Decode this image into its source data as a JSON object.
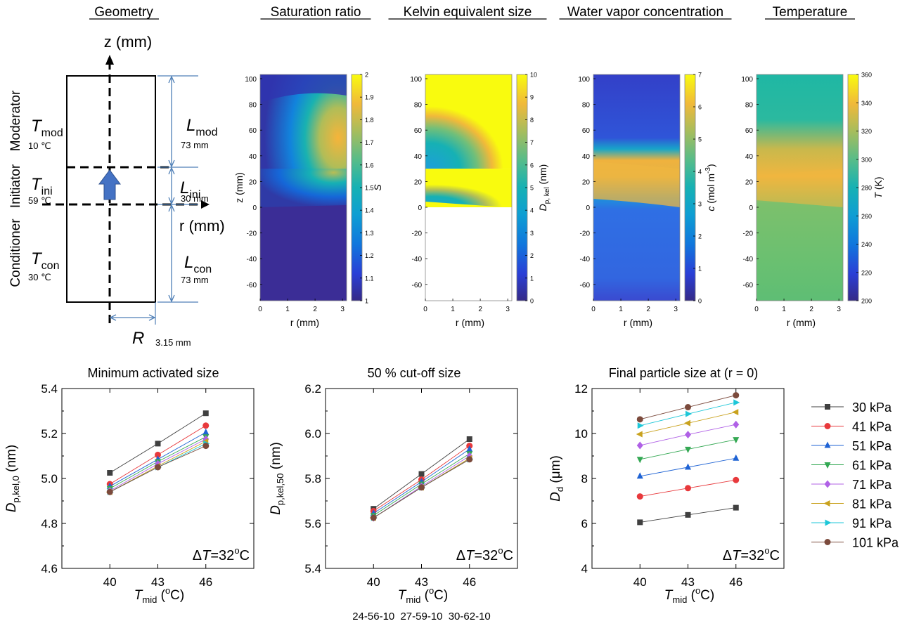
{
  "colors": {
    "line_blue": "#4f7fb6",
    "arrow_fill": "#4472c4",
    "series": [
      "#404040",
      "#e8393c",
      "#1f63d4",
      "#34a853",
      "#b061e6",
      "#c9a21e",
      "#1ec7d8",
      "#7b4a3c"
    ]
  },
  "geometry_panel": {
    "title": "Geometry",
    "z_axis_label": "z (mm)",
    "r_axis_label": "r (mm)",
    "section_labels": [
      "Moderator",
      "Initiator",
      "Conditioner"
    ],
    "temps": [
      {
        "sym": "T",
        "sub": "mod",
        "value": "10 ℃"
      },
      {
        "sym": "T",
        "sub": "ini",
        "value": "59 ℃"
      },
      {
        "sym": "T",
        "sub": "con",
        "value": "30 ℃"
      }
    ],
    "lengths": [
      {
        "sym": "L",
        "sub": "mod",
        "value": "73 mm"
      },
      {
        "sym": "L",
        "sub": "ini",
        "value": "30 mm"
      },
      {
        "sym": "L",
        "sub": "con",
        "value": "73 mm"
      }
    ],
    "radius": {
      "sym": "R",
      "value": "3.15 mm"
    }
  },
  "field_maps": [
    {
      "title": "Saturation ratio",
      "cbar_label": "S",
      "cbar_sub": "",
      "cbar_ticks": [
        "1",
        "1.1",
        "1.2",
        "1.3",
        "1.4",
        "1.5",
        "1.6",
        "1.7",
        "1.8",
        "1.9",
        "2"
      ],
      "colormap": "parula"
    },
    {
      "title": "Kelvin equivalent size",
      "cbar_label": "D",
      "cbar_sub": "p, kel",
      "cbar_unit": " (nm)",
      "cbar_ticks": [
        "0",
        "1",
        "2",
        "3",
        "4",
        "5",
        "6",
        "7",
        "8",
        "9",
        "10"
      ],
      "colormap": "parula"
    },
    {
      "title": "Water vapor concentration",
      "cbar_label": "c",
      "cbar_sub": "",
      "cbar_unit": " (mol m",
      "cbar_sup": "-3",
      "cbar_end": ")",
      "cbar_ticks": [
        "0",
        "1",
        "2",
        "3",
        "4",
        "5",
        "6",
        "7"
      ],
      "colormap": "parula"
    },
    {
      "title": "Temperature",
      "cbar_label": "T",
      "cbar_sub": "",
      "cbar_unit": " (K)",
      "cbar_ticks": [
        "200",
        "220",
        "240",
        "260",
        "280",
        "300",
        "320",
        "340",
        "360"
      ],
      "colormap": "parula"
    }
  ],
  "field_map_axes": {
    "xlabel": "r (mm)",
    "ylabel": "z (mm)",
    "x_ticks": [
      "0",
      "1",
      "2",
      "3"
    ],
    "y_ticks": [
      "100",
      "80",
      "60",
      "40",
      "20",
      "0",
      "-20",
      "-40",
      "-60"
    ]
  },
  "legend": {
    "entries": [
      "30 kPa",
      "41 kPa",
      "51 kPa",
      "61 kPa",
      "71 kPa",
      "81 kPa",
      "91 kPa",
      "101 kPa"
    ],
    "markers": [
      "square",
      "circle",
      "triangle-up",
      "triangle-down",
      "diamond",
      "triangle-left",
      "triangle-right",
      "hexagon"
    ]
  },
  "x_extra_labels": [
    "24-56-10",
    "27-59-10",
    "30-62-10"
  ],
  "chart_data": [
    {
      "type": "line",
      "title": "Minimum activated size",
      "ylabel_sym": "D",
      "ylabel_sub": "p,kel,0",
      "ylabel_unit": " (nm)",
      "xlabel_sym": "T",
      "xlabel_sub": "mid",
      "xlabel_unit": " (",
      "xlabel_sup": "o",
      "xlabel_end": "C)",
      "annotation": "ΔT=32°C",
      "x": [
        40,
        43,
        46
      ],
      "xlim": [
        37,
        49
      ],
      "ylim": [
        4.6,
        5.4
      ],
      "x_ticks": [
        "40",
        "43",
        "46"
      ],
      "y_ticks": [
        "4.6",
        "4.8",
        "5.0",
        "5.2",
        "5.4"
      ],
      "series": [
        {
          "name": "30 kPa",
          "values": [
            5.025,
            5.155,
            5.29
          ]
        },
        {
          "name": "41 kPa",
          "values": [
            4.975,
            5.105,
            5.235
          ]
        },
        {
          "name": "51 kPa",
          "values": [
            4.965,
            5.085,
            5.205
          ]
        },
        {
          "name": "61 kPa",
          "values": [
            4.955,
            5.075,
            5.185
          ]
        },
        {
          "name": "71 kPa",
          "values": [
            4.945,
            5.065,
            5.175
          ]
        },
        {
          "name": "81 kPa",
          "values": [
            4.94,
            5.055,
            5.165
          ]
        },
        {
          "name": "91 kPa",
          "values": [
            4.94,
            5.05,
            5.155
          ]
        },
        {
          "name": "101 kPa",
          "values": [
            4.94,
            5.05,
            5.145
          ]
        }
      ]
    },
    {
      "type": "line",
      "title": "50 % cut-off size",
      "ylabel_sym": "D",
      "ylabel_sub": "p,kel,50",
      "ylabel_unit": " (nm)",
      "xlabel_sym": "T",
      "xlabel_sub": "mid",
      "xlabel_unit": " (",
      "xlabel_sup": "o",
      "xlabel_end": "C)",
      "annotation": "ΔT=32°C",
      "x": [
        40,
        43,
        46
      ],
      "xlim": [
        37,
        49
      ],
      "ylim": [
        5.4,
        6.2
      ],
      "x_ticks": [
        "40",
        "43",
        "46"
      ],
      "y_ticks": [
        "5.4",
        "5.6",
        "5.8",
        "6.0",
        "6.2"
      ],
      "series": [
        {
          "name": "30 kPa",
          "values": [
            5.665,
            5.82,
            5.975
          ]
        },
        {
          "name": "41 kPa",
          "values": [
            5.655,
            5.795,
            5.945
          ]
        },
        {
          "name": "51 kPa",
          "values": [
            5.645,
            5.785,
            5.93
          ]
        },
        {
          "name": "61 kPa",
          "values": [
            5.635,
            5.775,
            5.91
          ]
        },
        {
          "name": "71 kPa",
          "values": [
            5.625,
            5.765,
            5.9
          ]
        },
        {
          "name": "81 kPa",
          "values": [
            5.625,
            5.76,
            5.89
          ]
        },
        {
          "name": "91 kPa",
          "values": [
            5.625,
            5.76,
            5.885
          ]
        },
        {
          "name": "101 kPa",
          "values": [
            5.625,
            5.76,
            5.885
          ]
        }
      ]
    },
    {
      "type": "line",
      "title": "Final particle size at (r = 0)",
      "ylabel_sym": "D",
      "ylabel_sub": "d",
      "ylabel_unit": " (μm)",
      "xlabel_sym": "T",
      "xlabel_sub": "mid",
      "xlabel_unit": " (",
      "xlabel_sup": "o",
      "xlabel_end": "C)",
      "annotation": "ΔT=32°C",
      "x": [
        40,
        43,
        46
      ],
      "xlim": [
        37,
        49
      ],
      "ylim": [
        4,
        12
      ],
      "x_ticks": [
        "40",
        "43",
        "46"
      ],
      "y_ticks": [
        "4",
        "6",
        "8",
        "10",
        "12"
      ],
      "series": [
        {
          "name": "30 kPa",
          "values": [
            6.05,
            6.38,
            6.7
          ]
        },
        {
          "name": "41 kPa",
          "values": [
            7.2,
            7.57,
            7.93
          ]
        },
        {
          "name": "51 kPa",
          "values": [
            8.1,
            8.5,
            8.9
          ]
        },
        {
          "name": "61 kPa",
          "values": [
            8.85,
            9.3,
            9.73
          ]
        },
        {
          "name": "71 kPa",
          "values": [
            9.47,
            9.95,
            10.4
          ]
        },
        {
          "name": "81 kPa",
          "values": [
            9.97,
            10.46,
            10.95
          ]
        },
        {
          "name": "91 kPa",
          "values": [
            10.35,
            10.87,
            11.38
          ]
        },
        {
          "name": "101 kPa",
          "values": [
            10.63,
            11.17,
            11.7
          ]
        }
      ]
    }
  ]
}
